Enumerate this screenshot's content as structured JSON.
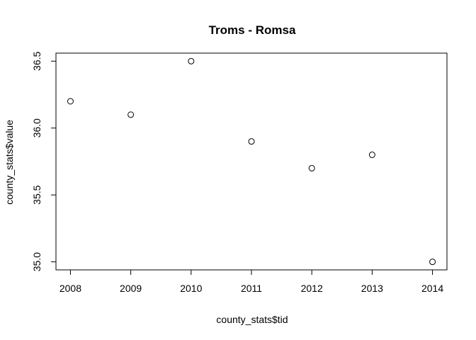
{
  "chart_data": {
    "type": "scatter",
    "title": "Troms - Romsa",
    "xlabel": "county_stats$tid",
    "ylabel": "county_stats$value",
    "x": [
      2008,
      2009,
      2010,
      2011,
      2012,
      2013,
      2014
    ],
    "y": [
      36.2,
      36.1,
      36.5,
      35.9,
      35.7,
      35.8,
      35.0
    ],
    "xlim": [
      2007.76,
      2014.24
    ],
    "ylim": [
      34.94,
      36.56
    ],
    "xticks": [
      2008,
      2009,
      2010,
      2011,
      2012,
      2013,
      2014
    ],
    "xtick_labels": [
      "2008",
      "2009",
      "2010",
      "2011",
      "2012",
      "2013",
      "2014"
    ],
    "yticks": [
      35.0,
      35.5,
      36.0,
      36.5
    ],
    "ytick_labels": [
      "35.0",
      "35.5",
      "36.0",
      "36.5"
    ],
    "grid": false,
    "marker": "open-circle",
    "marker_color": "#000000"
  }
}
